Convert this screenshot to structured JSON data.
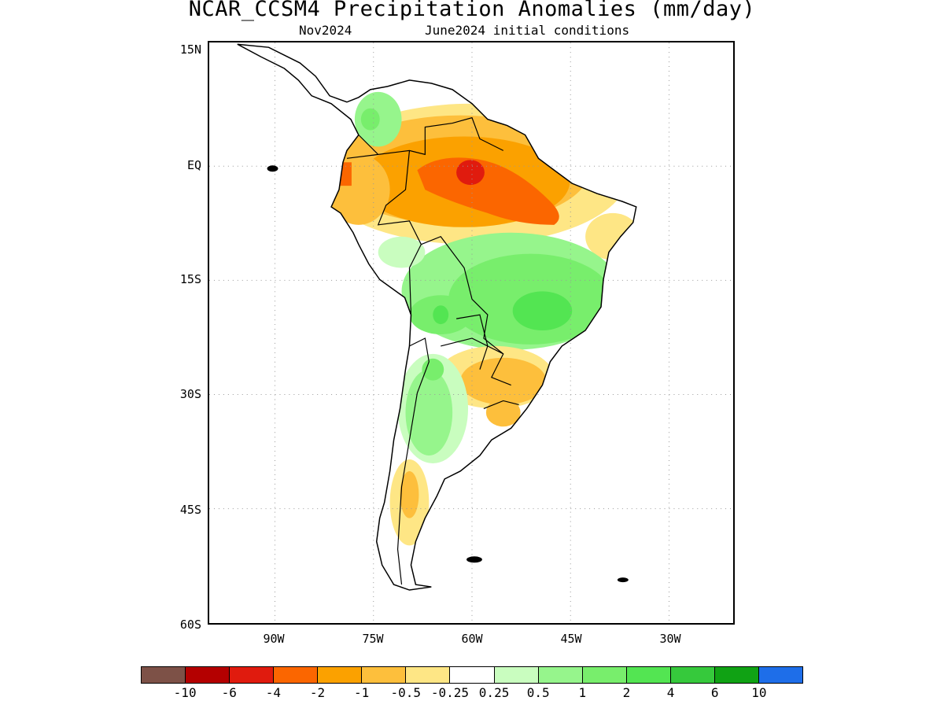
{
  "title": "NCAR_CCSM4 Precipitation Anomalies (mm/day)",
  "subtitle_left": "Nov2024",
  "subtitle_right": "June2024 initial conditions",
  "lat_labels": [
    "15N",
    "EQ",
    "15S",
    "30S",
    "45S",
    "60S"
  ],
  "lon_labels": [
    "90W",
    "75W",
    "60W",
    "45W",
    "30W"
  ],
  "colorbar": {
    "colors": [
      "#7d5147",
      "#b40000",
      "#e01b0e",
      "#fb6600",
      "#fba100",
      "#fdbf3c",
      "#fee685",
      "#ffffff",
      "#c9fdbf",
      "#96f58c",
      "#78ee6c",
      "#53e552",
      "#36c93c",
      "#10a214",
      "#1e6ee9"
    ],
    "labels": [
      "-10",
      "-6",
      "-4",
      "-2",
      "-1",
      "-0.5",
      "-0.25",
      "0.25",
      "0.5",
      "1",
      "2",
      "4",
      "6",
      "10"
    ]
  },
  "map_data": {
    "region": "South America",
    "lon_range": [
      "95W",
      "15W"
    ],
    "lat_range": [
      "60S",
      "15N"
    ],
    "grid": "dotted",
    "patterns": [
      {
        "area": "Amazon basin",
        "sign": "dry",
        "peak": "-4 to -6"
      },
      {
        "area": "Northern Colombia",
        "sign": "wet",
        "peak": "1 to 2"
      },
      {
        "area": "Central Brazil",
        "sign": "wet",
        "peak": "2 to 4"
      },
      {
        "area": "Southern Brazil / Uruguay",
        "sign": "dry",
        "peak": "-1 to -2"
      },
      {
        "area": "Central Argentina / Chile",
        "sign": "wet",
        "peak": "0.5 to 2"
      },
      {
        "area": "Southern Chile",
        "sign": "dry",
        "peak": "-1 to -2"
      }
    ]
  }
}
